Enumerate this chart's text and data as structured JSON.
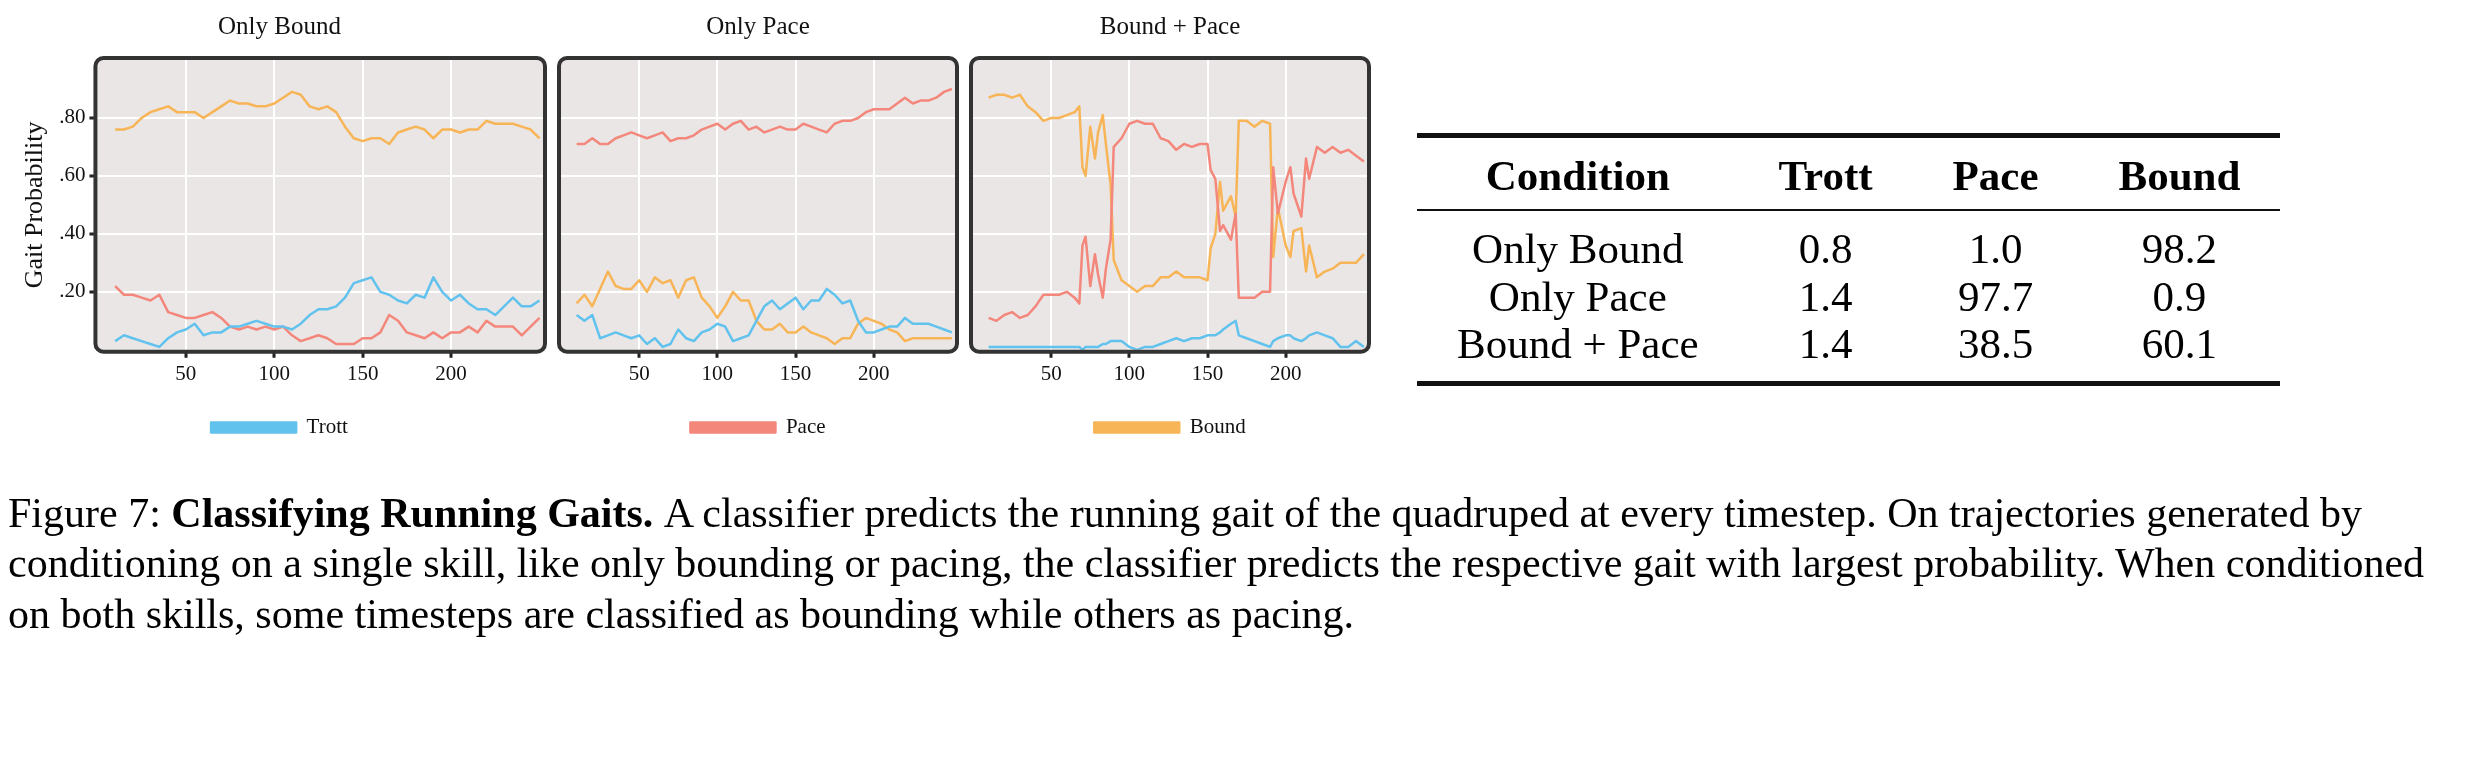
{
  "chart_data": [
    {
      "type": "line",
      "title": "Only Bound",
      "ylabel": "Gait Probability",
      "xlim": [
        0,
        252
      ],
      "ylim": [
        0,
        1
      ],
      "xticks": [
        50,
        100,
        150,
        200
      ],
      "yticks": [
        {
          "value": 0.2,
          "label": ".20"
        },
        {
          "value": 0.4,
          "label": ".40"
        },
        {
          "value": 0.6,
          "label": ".60"
        },
        {
          "value": 0.8,
          "label": ".80"
        }
      ],
      "grid": true,
      "legend": "bottom",
      "x": [
        10,
        15,
        20,
        25,
        30,
        35,
        40,
        45,
        50,
        55,
        60,
        65,
        70,
        75,
        80,
        85,
        90,
        95,
        100,
        105,
        110,
        115,
        120,
        125,
        130,
        135,
        140,
        145,
        150,
        155,
        160,
        165,
        170,
        175,
        180,
        185,
        190,
        195,
        200,
        205,
        210,
        215,
        220,
        225,
        230,
        235,
        240,
        245,
        250
      ],
      "series": [
        {
          "name": "Trott",
          "color": "#62c2ee",
          "values": [
            0.03,
            0.05,
            0.04,
            0.03,
            0.02,
            0.01,
            0.04,
            0.06,
            0.07,
            0.09,
            0.05,
            0.06,
            0.06,
            0.08,
            0.08,
            0.09,
            0.1,
            0.09,
            0.08,
            0.08,
            0.07,
            0.09,
            0.12,
            0.14,
            0.14,
            0.15,
            0.18,
            0.23,
            0.24,
            0.25,
            0.2,
            0.19,
            0.17,
            0.16,
            0.19,
            0.18,
            0.25,
            0.2,
            0.17,
            0.19,
            0.16,
            0.14,
            0.14,
            0.12,
            0.15,
            0.18,
            0.15,
            0.15,
            0.17
          ]
        },
        {
          "color": "#f4877b",
          "values": [
            0.22,
            0.19,
            0.19,
            0.18,
            0.17,
            0.19,
            0.13,
            0.12,
            0.11,
            0.11,
            0.12,
            0.13,
            0.11,
            0.08,
            0.07,
            0.08,
            0.07,
            0.08,
            0.07,
            0.08,
            0.05,
            0.03,
            0.04,
            0.05,
            0.04,
            0.02,
            0.02,
            0.02,
            0.04,
            0.04,
            0.06,
            0.12,
            0.1,
            0.06,
            0.05,
            0.04,
            0.06,
            0.04,
            0.06,
            0.06,
            0.08,
            0.06,
            0.1,
            0.08,
            0.08,
            0.08,
            0.05,
            0.08,
            0.11
          ]
        },
        {
          "color": "#f8b558",
          "values": [
            0.76,
            0.76,
            0.77,
            0.8,
            0.82,
            0.83,
            0.84,
            0.82,
            0.82,
            0.82,
            0.8,
            0.82,
            0.84,
            0.86,
            0.85,
            0.85,
            0.84,
            0.84,
            0.85,
            0.87,
            0.89,
            0.88,
            0.84,
            0.83,
            0.84,
            0.82,
            0.77,
            0.73,
            0.72,
            0.73,
            0.73,
            0.71,
            0.75,
            0.76,
            0.77,
            0.76,
            0.73,
            0.76,
            0.76,
            0.75,
            0.76,
            0.76,
            0.79,
            0.78,
            0.78,
            0.78,
            0.77,
            0.76,
            0.73
          ]
        }
      ]
    },
    {
      "type": "line",
      "title": "Only Pace",
      "xlim": [
        0,
        252
      ],
      "ylim": [
        0,
        1
      ],
      "xticks": [
        50,
        100,
        150,
        200
      ],
      "yticks": [
        0.2,
        0.4,
        0.6,
        0.8
      ],
      "tick_labels": "x",
      "grid": true,
      "legend": "bottom",
      "x": [
        10,
        15,
        20,
        25,
        30,
        35,
        40,
        45,
        50,
        55,
        60,
        65,
        70,
        75,
        80,
        85,
        90,
        95,
        100,
        105,
        110,
        115,
        120,
        125,
        130,
        135,
        140,
        145,
        150,
        155,
        160,
        165,
        170,
        175,
        180,
        185,
        190,
        195,
        200,
        205,
        210,
        215,
        220,
        225,
        230,
        235,
        240,
        245,
        250
      ],
      "series": [
        {
          "color": "#62c2ee",
          "values": [
            0.12,
            0.1,
            0.12,
            0.04,
            0.05,
            0.06,
            0.05,
            0.04,
            0.05,
            0.02,
            0.04,
            0.01,
            0.02,
            0.07,
            0.04,
            0.03,
            0.06,
            0.07,
            0.09,
            0.08,
            0.03,
            0.04,
            0.05,
            0.1,
            0.15,
            0.17,
            0.14,
            0.16,
            0.18,
            0.14,
            0.17,
            0.17,
            0.21,
            0.19,
            0.16,
            0.17,
            0.1,
            0.06,
            0.06,
            0.07,
            0.08,
            0.08,
            0.11,
            0.09,
            0.09,
            0.09,
            0.08,
            0.07,
            0.06
          ]
        },
        {
          "name": "Pace",
          "color": "#f4877b",
          "values": [
            0.71,
            0.71,
            0.73,
            0.71,
            0.71,
            0.73,
            0.74,
            0.75,
            0.74,
            0.73,
            0.74,
            0.75,
            0.72,
            0.73,
            0.73,
            0.74,
            0.76,
            0.77,
            0.78,
            0.76,
            0.78,
            0.79,
            0.76,
            0.77,
            0.75,
            0.76,
            0.77,
            0.76,
            0.76,
            0.78,
            0.77,
            0.76,
            0.75,
            0.78,
            0.79,
            0.79,
            0.8,
            0.82,
            0.83,
            0.83,
            0.83,
            0.85,
            0.87,
            0.85,
            0.86,
            0.86,
            0.87,
            0.89,
            0.9
          ]
        },
        {
          "color": "#f8b558",
          "values": [
            0.16,
            0.19,
            0.15,
            0.21,
            0.27,
            0.22,
            0.21,
            0.21,
            0.24,
            0.2,
            0.25,
            0.23,
            0.24,
            0.18,
            0.24,
            0.25,
            0.18,
            0.15,
            0.11,
            0.15,
            0.2,
            0.17,
            0.17,
            0.1,
            0.07,
            0.07,
            0.09,
            0.06,
            0.06,
            0.08,
            0.06,
            0.05,
            0.04,
            0.02,
            0.04,
            0.04,
            0.09,
            0.11,
            0.1,
            0.09,
            0.07,
            0.06,
            0.03,
            0.04,
            0.04,
            0.04,
            0.04,
            0.04,
            0.04
          ]
        }
      ]
    },
    {
      "type": "line",
      "title": "Bound + Pace",
      "xlim": [
        0,
        252
      ],
      "ylim": [
        0,
        1
      ],
      "xticks": [
        50,
        100,
        150,
        200
      ],
      "yticks": [
        0.2,
        0.4,
        0.6,
        0.8
      ],
      "tick_labels": "x",
      "grid": true,
      "legend": "bottom",
      "x": [
        10,
        15,
        20,
        25,
        30,
        35,
        40,
        45,
        50,
        55,
        60,
        65,
        68,
        70,
        72,
        75,
        78,
        80,
        83,
        85,
        88,
        90,
        95,
        100,
        105,
        110,
        115,
        120,
        125,
        130,
        135,
        140,
        145,
        150,
        152,
        155,
        158,
        160,
        165,
        168,
        170,
        175,
        180,
        185,
        190,
        192,
        195,
        200,
        203,
        205,
        210,
        213,
        215,
        220,
        225,
        230,
        235,
        240,
        245,
        250
      ],
      "series": [
        {
          "color": "#62c2ee",
          "values": [
            0.01,
            0.01,
            0.01,
            0.01,
            0.01,
            0.01,
            0.01,
            0.01,
            0.01,
            0.01,
            0.01,
            0.01,
            0.01,
            0.0,
            0.01,
            0.01,
            0.01,
            0.01,
            0.02,
            0.02,
            0.03,
            0.03,
            0.03,
            0.01,
            0.0,
            0.01,
            0.01,
            0.02,
            0.03,
            0.04,
            0.03,
            0.04,
            0.04,
            0.05,
            0.05,
            0.05,
            0.06,
            0.07,
            0.09,
            0.1,
            0.05,
            0.04,
            0.03,
            0.02,
            0.01,
            0.03,
            0.04,
            0.05,
            0.05,
            0.04,
            0.03,
            0.04,
            0.05,
            0.06,
            0.05,
            0.04,
            0.01,
            0.01,
            0.03,
            0.01
          ]
        },
        {
          "color": "#f4877b",
          "values": [
            0.11,
            0.1,
            0.12,
            0.13,
            0.11,
            0.12,
            0.15,
            0.19,
            0.19,
            0.19,
            0.2,
            0.18,
            0.16,
            0.36,
            0.39,
            0.22,
            0.33,
            0.26,
            0.18,
            0.28,
            0.38,
            0.7,
            0.73,
            0.78,
            0.79,
            0.78,
            0.78,
            0.73,
            0.72,
            0.69,
            0.71,
            0.7,
            0.71,
            0.71,
            0.62,
            0.59,
            0.41,
            0.43,
            0.38,
            0.47,
            0.18,
            0.18,
            0.18,
            0.2,
            0.2,
            0.63,
            0.47,
            0.58,
            0.63,
            0.54,
            0.46,
            0.66,
            0.59,
            0.7,
            0.68,
            0.7,
            0.68,
            0.69,
            0.67,
            0.65
          ]
        },
        {
          "name": "Bound",
          "color": "#f8b558",
          "values": [
            0.87,
            0.88,
            0.88,
            0.87,
            0.88,
            0.84,
            0.82,
            0.79,
            0.8,
            0.8,
            0.81,
            0.82,
            0.84,
            0.63,
            0.6,
            0.77,
            0.66,
            0.75,
            0.81,
            0.71,
            0.57,
            0.31,
            0.24,
            0.22,
            0.2,
            0.22,
            0.22,
            0.25,
            0.25,
            0.27,
            0.25,
            0.25,
            0.25,
            0.24,
            0.35,
            0.4,
            0.58,
            0.48,
            0.53,
            0.46,
            0.79,
            0.79,
            0.77,
            0.79,
            0.78,
            0.32,
            0.49,
            0.36,
            0.32,
            0.41,
            0.42,
            0.27,
            0.36,
            0.25,
            0.27,
            0.28,
            0.3,
            0.3,
            0.3,
            0.33
          ]
        }
      ]
    },
    {
      "type": "other",
      "xlabel": "Condition",
      "categories": [
        "Only Bound",
        "Only Pace",
        "Bound + Pace"
      ],
      "data_labels": true,
      "series": [
        {
          "name": "Trott",
          "values": [
            0.8,
            1.4,
            1.4
          ]
        },
        {
          "name": "Pace",
          "values": [
            1.0,
            97.7,
            38.5
          ],
          "value_labels": [
            "1.0",
            "97.7",
            "38.5"
          ]
        },
        {
          "name": "Bound",
          "values": [
            98.2,
            0.9,
            60.1
          ]
        }
      ]
    },
    {
      "type": "other",
      "annotations": [
        "Figure 7:",
        "Classifying Running Gaits.",
        "A classifier predicts the running gait of the quadruped at every timestep. On trajectories generated by conditioning on a single skill, like only bounding or pacing, the classifier predicts the respective gait with largest probability. When conditioned on both skills, some timesteps are classified as bounding while others as pacing."
      ]
    }
  ]
}
